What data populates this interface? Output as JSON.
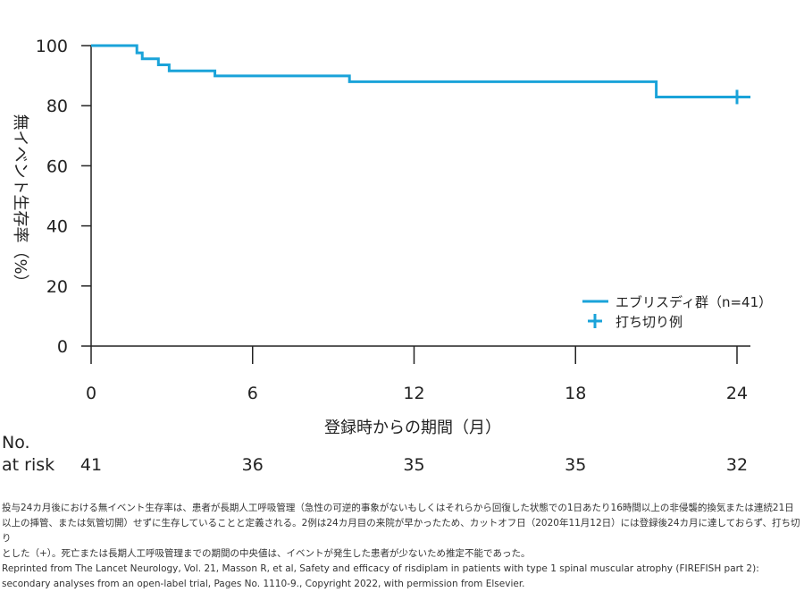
{
  "chart_data": {
    "type": "line",
    "subtype": "kaplan-meier-step",
    "title": "",
    "xlabel": "登録時からの期間（月）",
    "ylabel": "無イベント生存率（%）",
    "xlim": [
      0,
      24
    ],
    "ylim": [
      0,
      100
    ],
    "x_ticks": [
      "0",
      "6",
      "12",
      "18",
      "24"
    ],
    "y_ticks": [
      "0",
      "20",
      "40",
      "60",
      "80",
      "100"
    ],
    "grid": false,
    "legend_position": "bottom-right",
    "colors": {
      "series": "#1aa3d9",
      "axis": "#222222"
    },
    "series": [
      {
        "name": "エブリスディ群（n=41）",
        "steps": [
          [
            0,
            100
          ],
          [
            1.7,
            97.6
          ],
          [
            1.9,
            95.6
          ],
          [
            2.5,
            93.6
          ],
          [
            2.9,
            91.6
          ],
          [
            4.6,
            89.9
          ],
          [
            9.6,
            88.0
          ],
          [
            21.0,
            82.9
          ],
          [
            24.5,
            82.9
          ]
        ]
      }
    ],
    "censor_marks": {
      "name": "打ち切り例",
      "points": [
        [
          24.0,
          82.9
        ]
      ]
    },
    "at_risk": {
      "label_line1": "No.",
      "label_line2": "at risk",
      "x": [
        0,
        6,
        12,
        18,
        24
      ],
      "values": [
        "41",
        "36",
        "35",
        "35",
        "32"
      ]
    }
  },
  "footnote": {
    "line1": "投与24カ月後における無イベント生存率は、患者が長期人工呼吸管理（急性の可逆的事象がないもしくはそれらから回復した状態での1日あたり16時間以上の非侵襲的換気または連続21日",
    "line2": "以上の挿管、または気管切開）せずに生存していることと定義される。2例は24カ月目の来院が早かったため、カットオフ日（2020年11月12日）には登録後24カ月に達しておらず、打ち切り",
    "line3": "とした（+）。死亡または長期人工呼吸管理までの期間の中央値は、イベントが発生した患者が少ないため推定不能であった。",
    "line4": "Reprinted from The Lancet Neurology, Vol. 21, Masson R, et al, Safety and efficacy of risdiplam in patients with type 1 spinal muscular atrophy (FIREFISH part 2):",
    "line5": "secondary analyses from an open-label trial, Pages No. 1110-9., Copyright 2022, with permission from Elsevier."
  }
}
